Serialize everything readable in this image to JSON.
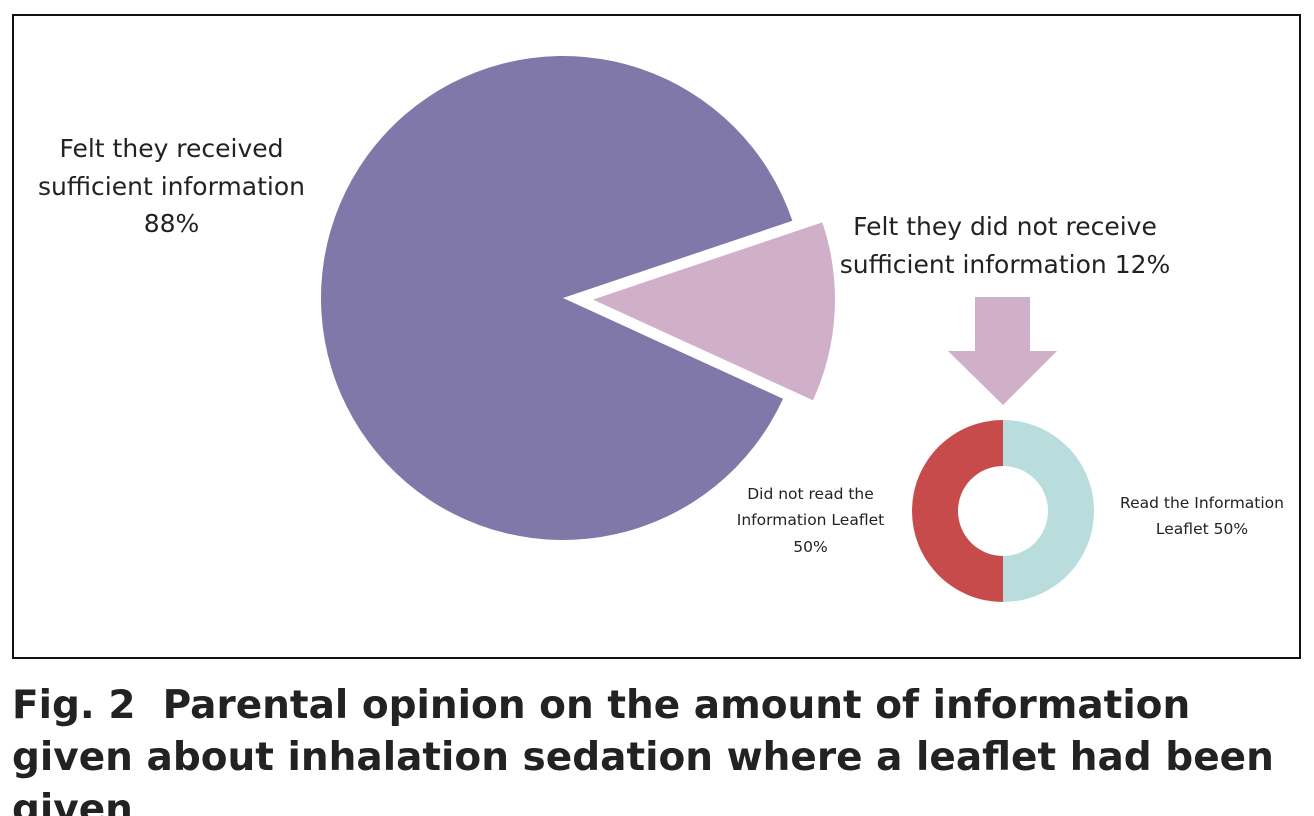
{
  "chart_data": [
    {
      "type": "pie",
      "categories": [
        "Felt they received sufficient information",
        "Felt they did not receive sufficient information"
      ],
      "values": [
        88,
        12
      ],
      "value_labels": [
        "88%",
        "12%"
      ],
      "colors": [
        "#7f78a8",
        "#cfb0c8"
      ]
    },
    {
      "type": "donut",
      "categories": [
        "Did not read the Information Leaflet",
        "Read the Information Leaflet"
      ],
      "values": [
        50,
        50
      ],
      "value_labels": [
        "50%",
        "50%"
      ],
      "colors": [
        "#c84b4b",
        "#b9dcdd"
      ]
    }
  ],
  "caption": {
    "label": "Fig. 2",
    "text": "Parental opinion on the amount of information given about inhalation sedation where a leaflet had been given"
  }
}
